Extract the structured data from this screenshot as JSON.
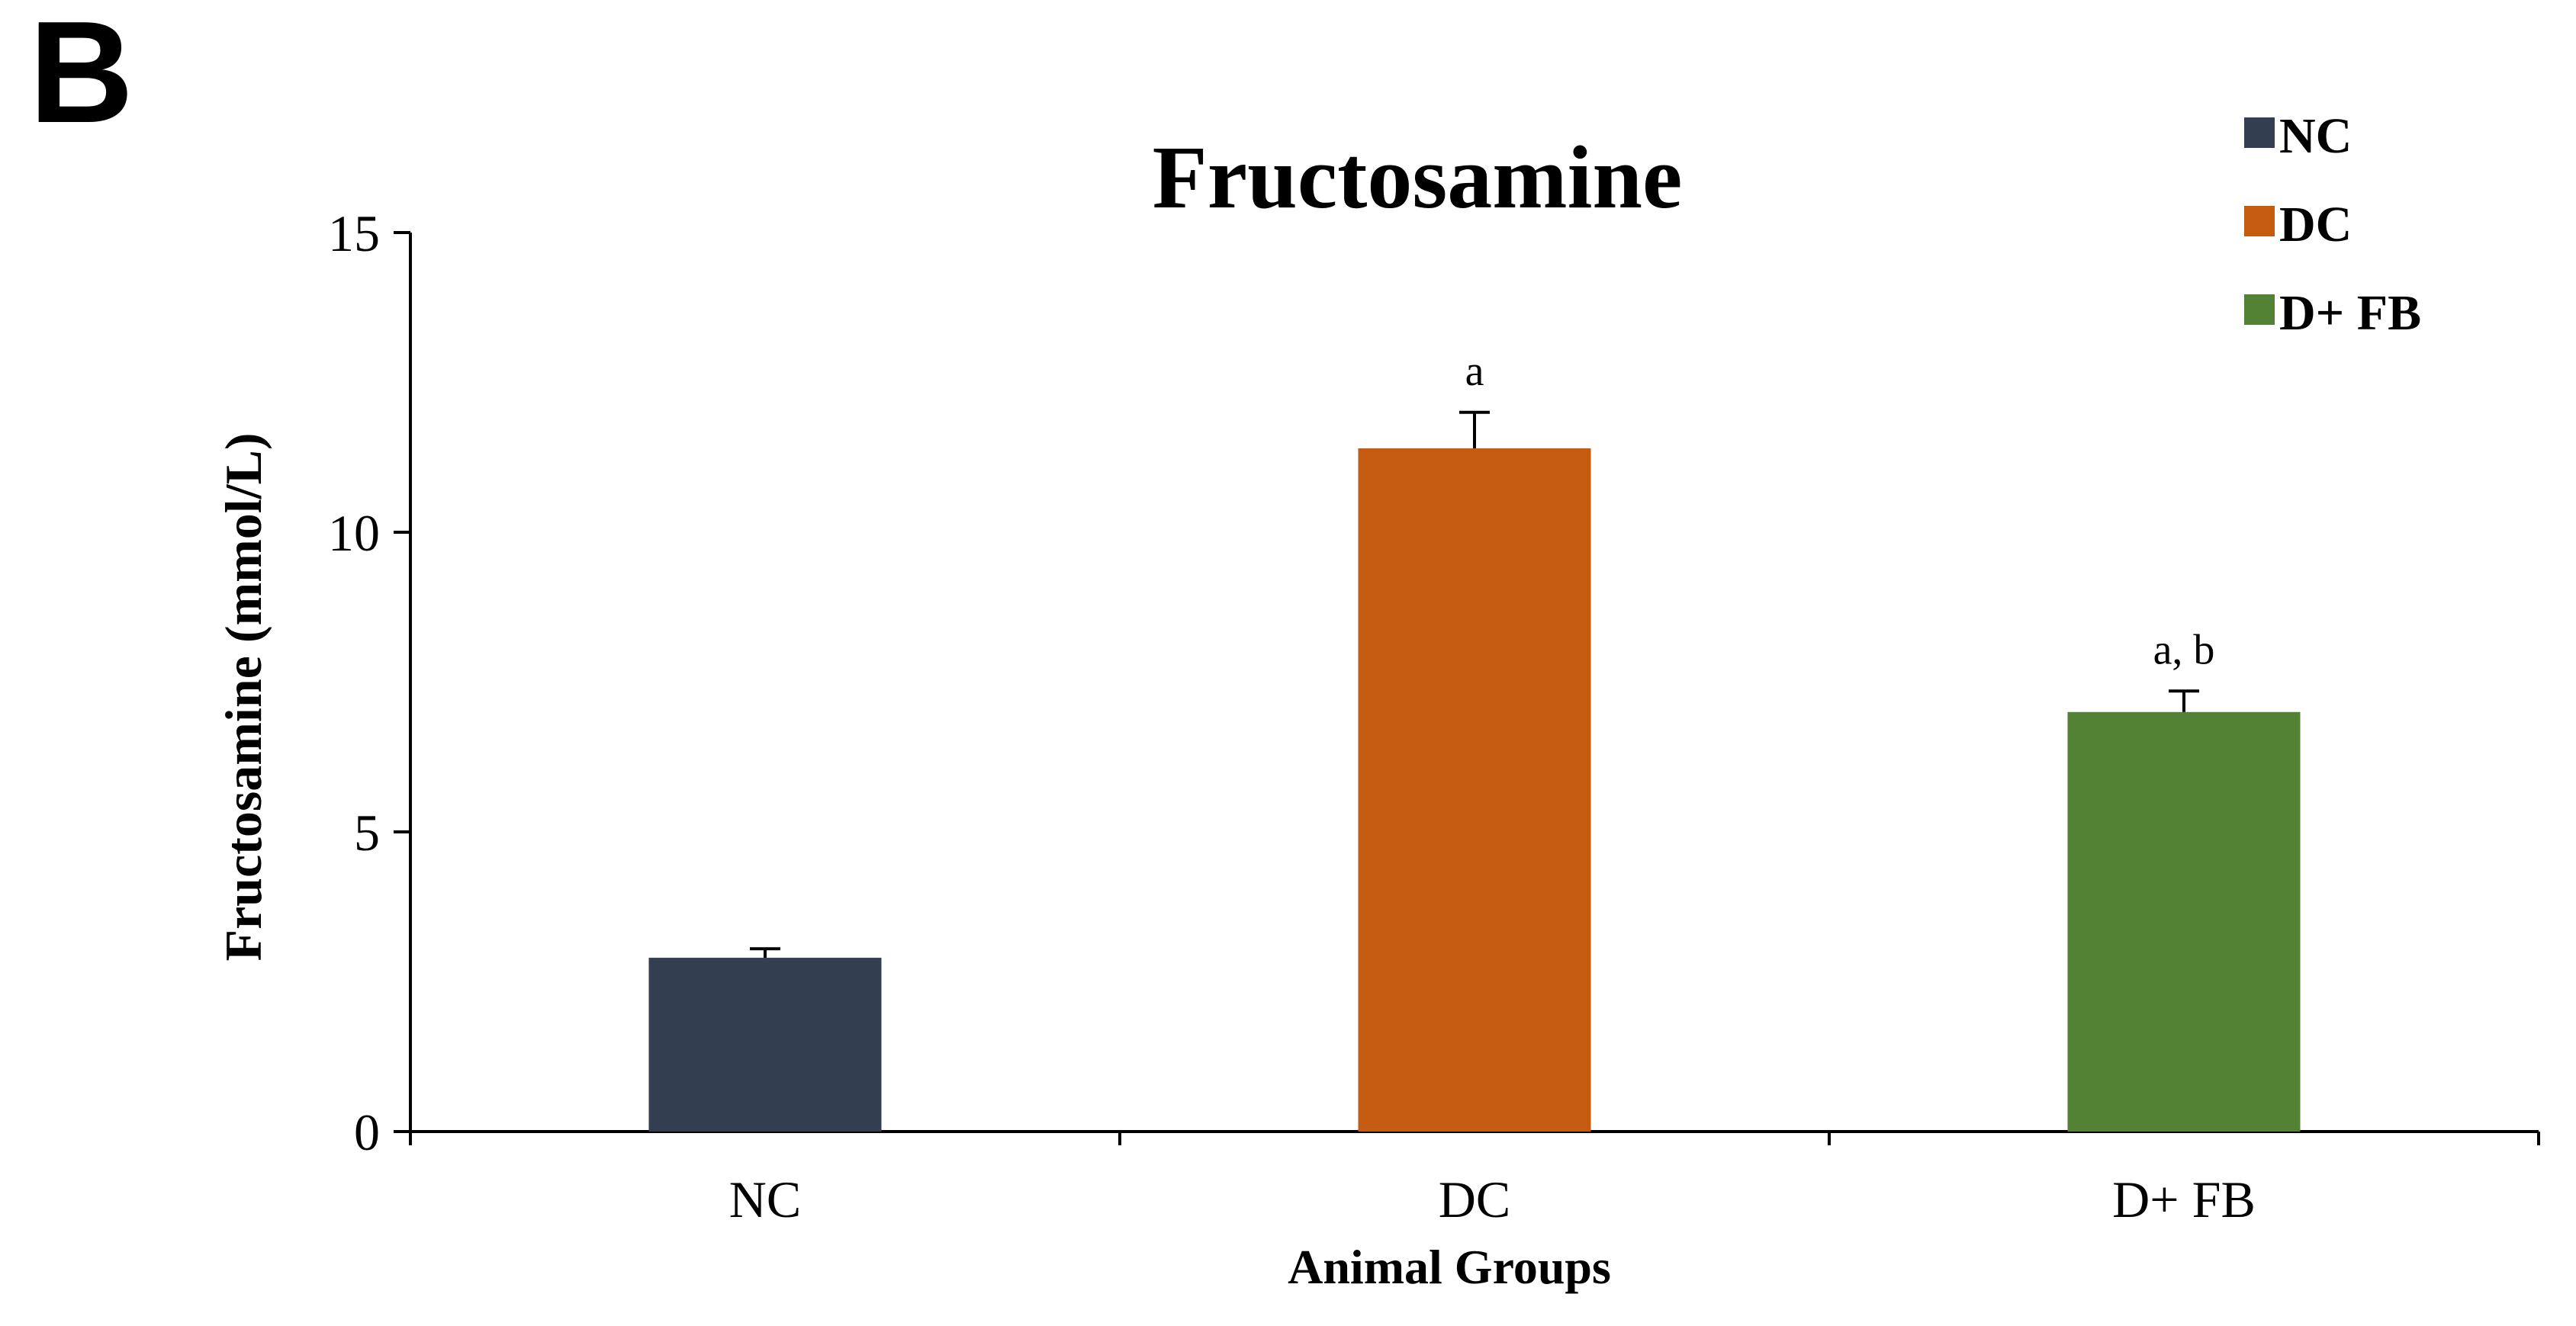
{
  "panel_label": "B",
  "chart_data": {
    "type": "bar",
    "title": "Fructosamine",
    "xlabel": "Animal Groups",
    "ylabel": "Fructosamine (mmol/L)",
    "ylim": [
      0,
      15
    ],
    "yticks": [
      0,
      5,
      10,
      15
    ],
    "categories": [
      "NC",
      "DC",
      "D+ FB"
    ],
    "values": [
      2.9,
      11.4,
      7.0
    ],
    "errors": [
      0.15,
      0.6,
      0.35
    ],
    "annotations": [
      "",
      "a",
      "a, b"
    ],
    "colors": [
      "#333f50",
      "#c55a11",
      "#548235"
    ],
    "legend": {
      "position": "top-right",
      "entries": [
        {
          "label": "NC",
          "color": "#333f50"
        },
        {
          "label": "DC",
          "color": "#c55a11"
        },
        {
          "label": "D+ FB",
          "color": "#548235"
        }
      ]
    },
    "grid": false
  }
}
